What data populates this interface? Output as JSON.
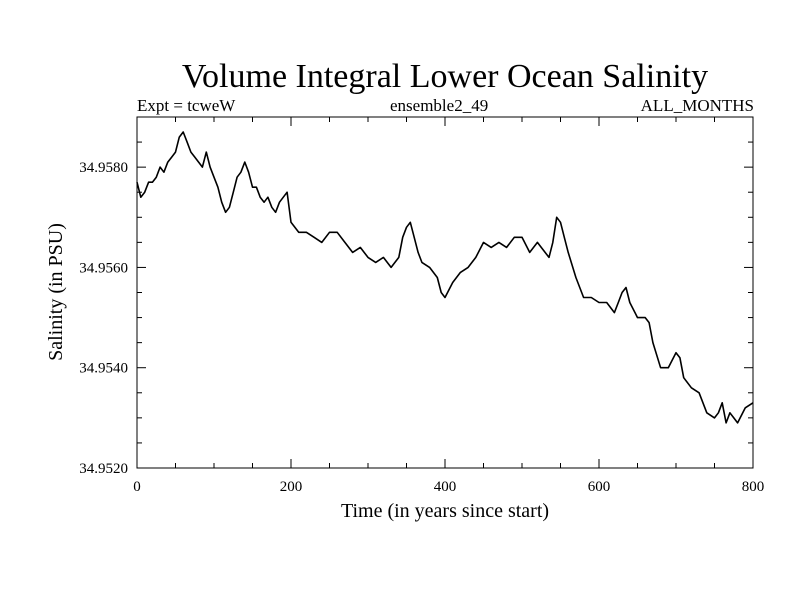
{
  "chart_data": {
    "type": "line",
    "title": "Volume Integral Lower Ocean Salinity",
    "subtitle_left": "Expt = tcweW",
    "subtitle_center": "ensemble2_49",
    "subtitle_right": "ALL_MONTHS",
    "xlabel": "Time (in years since start)",
    "ylabel": "Salinity (in PSU)",
    "xlim": [
      0,
      800
    ],
    "ylim": [
      34.952,
      34.959
    ],
    "xticks": [
      0,
      200,
      400,
      600,
      800
    ],
    "xtick_labels": [
      "0",
      "200",
      "400",
      "600",
      "800"
    ],
    "yticks": [
      34.952,
      34.954,
      34.956,
      34.958
    ],
    "ytick_labels": [
      "34.9520",
      "34.9540",
      "34.9560",
      "34.9580"
    ],
    "series": [
      {
        "name": "salinity",
        "x": [
          0,
          5,
          10,
          15,
          20,
          25,
          30,
          35,
          40,
          45,
          50,
          55,
          60,
          65,
          70,
          75,
          80,
          85,
          90,
          95,
          100,
          105,
          110,
          115,
          120,
          125,
          130,
          135,
          140,
          145,
          150,
          155,
          160,
          165,
          170,
          175,
          180,
          185,
          190,
          195,
          200,
          210,
          220,
          230,
          240,
          250,
          260,
          270,
          280,
          290,
          300,
          310,
          320,
          330,
          340,
          345,
          350,
          355,
          360,
          365,
          370,
          380,
          390,
          395,
          400,
          410,
          420,
          430,
          440,
          450,
          460,
          470,
          480,
          490,
          500,
          510,
          520,
          530,
          535,
          540,
          545,
          550,
          555,
          560,
          570,
          580,
          590,
          600,
          610,
          620,
          625,
          630,
          635,
          640,
          650,
          660,
          665,
          670,
          680,
          690,
          700,
          705,
          710,
          720,
          730,
          740,
          750,
          755,
          760,
          765,
          770,
          775,
          780,
          790,
          800
        ],
        "values": [
          34.9577,
          34.9574,
          34.9575,
          34.9577,
          34.9577,
          34.9578,
          34.958,
          34.9579,
          34.9581,
          34.9582,
          34.9583,
          34.9586,
          34.9587,
          34.9585,
          34.9583,
          34.9582,
          34.9581,
          34.958,
          34.9583,
          34.958,
          34.9578,
          34.9576,
          34.9573,
          34.9571,
          34.9572,
          34.9575,
          34.9578,
          34.9579,
          34.9581,
          34.9579,
          34.9576,
          34.9576,
          34.9574,
          34.9573,
          34.9574,
          34.9572,
          34.9571,
          34.9573,
          34.9574,
          34.9575,
          34.9569,
          34.9567,
          34.9567,
          34.9566,
          34.9565,
          34.9567,
          34.9567,
          34.9565,
          34.9563,
          34.9564,
          34.9562,
          34.9561,
          34.9562,
          34.956,
          34.9562,
          34.9566,
          34.9568,
          34.9569,
          34.9566,
          34.9563,
          34.9561,
          34.956,
          34.9558,
          34.9555,
          34.9554,
          34.9557,
          34.9559,
          34.956,
          34.9562,
          34.9565,
          34.9564,
          34.9565,
          34.9564,
          34.9566,
          34.9566,
          34.9563,
          34.9565,
          34.9563,
          34.9562,
          34.9565,
          34.957,
          34.9569,
          34.9566,
          34.9563,
          34.9558,
          34.9554,
          34.9554,
          34.9553,
          34.9553,
          34.9551,
          34.9553,
          34.9555,
          34.9556,
          34.9553,
          34.955,
          34.955,
          34.9549,
          34.9545,
          34.954,
          34.954,
          34.9543,
          34.9542,
          34.9538,
          34.9536,
          34.9535,
          34.9531,
          34.953,
          34.9531,
          34.9533,
          34.9529,
          34.9531,
          34.953,
          34.9529,
          34.9532,
          34.9533
        ]
      }
    ]
  }
}
